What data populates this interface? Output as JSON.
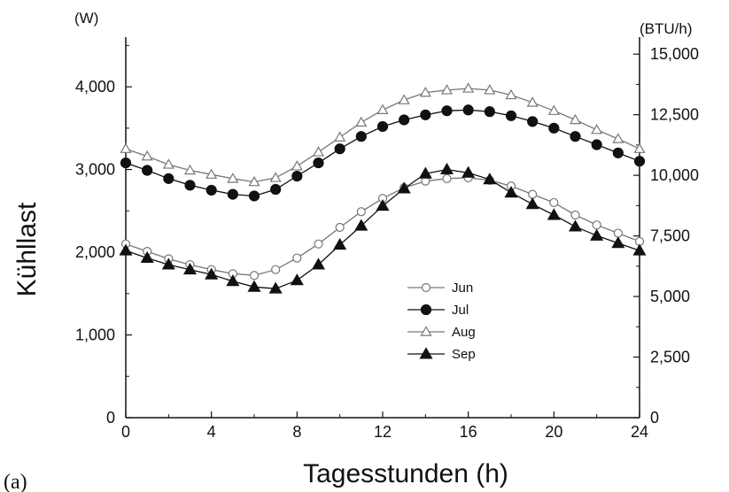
{
  "chart_data": {
    "type": "line",
    "panel_label": "(a)",
    "xlabel": "Tagesstunden (h)",
    "ylabel": "Kühllast",
    "left_unit": "(W)",
    "right_unit": "(BTU/h)",
    "xlim": [
      0,
      24
    ],
    "ylim": [
      0,
      4600
    ],
    "right_ylim": [
      0,
      15700
    ],
    "x_ticks": [
      "0",
      "4",
      "8",
      "12",
      "16",
      "20",
      "24"
    ],
    "x_tick_values": [
      0,
      4,
      8,
      12,
      16,
      20,
      24
    ],
    "y_ticks": [
      "0",
      "1,000",
      "2,000",
      "3,000",
      "4,000"
    ],
    "y_tick_values": [
      0,
      1000,
      2000,
      3000,
      4000
    ],
    "right_y_ticks": [
      "0",
      "2,500",
      "5,000",
      "7,500",
      "10,000",
      "12,500",
      "15,000"
    ],
    "right_y_tick_values": [
      0,
      2500,
      5000,
      7500,
      10000,
      12500,
      15000
    ],
    "grid": false,
    "legend_position": "center",
    "x": [
      0,
      1,
      2,
      3,
      4,
      5,
      6,
      7,
      8,
      9,
      10,
      11,
      12,
      13,
      14,
      15,
      16,
      17,
      18,
      19,
      20,
      21,
      22,
      23,
      24
    ],
    "series": [
      {
        "name": "Jun",
        "marker": "circle-open",
        "values": [
          2100,
          2010,
          1920,
          1850,
          1790,
          1740,
          1720,
          1790,
          1930,
          2100,
          2300,
          2490,
          2650,
          2780,
          2860,
          2890,
          2900,
          2870,
          2800,
          2700,
          2600,
          2450,
          2330,
          2230,
          2130
        ]
      },
      {
        "name": "Jul",
        "marker": "circle-filled",
        "values": [
          3080,
          2990,
          2890,
          2810,
          2750,
          2700,
          2680,
          2760,
          2920,
          3080,
          3250,
          3400,
          3520,
          3600,
          3660,
          3710,
          3720,
          3700,
          3650,
          3580,
          3500,
          3400,
          3300,
          3200,
          3100
        ]
      },
      {
        "name": "Aug",
        "marker": "triangle-open",
        "values": [
          3250,
          3160,
          3060,
          2990,
          2940,
          2890,
          2850,
          2900,
          3040,
          3210,
          3390,
          3570,
          3720,
          3840,
          3930,
          3960,
          3980,
          3960,
          3900,
          3810,
          3710,
          3600,
          3480,
          3370,
          3250
        ]
      },
      {
        "name": "Sep",
        "marker": "triangle-filled",
        "values": [
          2020,
          1930,
          1850,
          1790,
          1730,
          1650,
          1580,
          1560,
          1660,
          1850,
          2090,
          2320,
          2560,
          2770,
          2950,
          3000,
          2960,
          2880,
          2720,
          2580,
          2450,
          2310,
          2200,
          2110,
          2020
        ]
      }
    ]
  }
}
